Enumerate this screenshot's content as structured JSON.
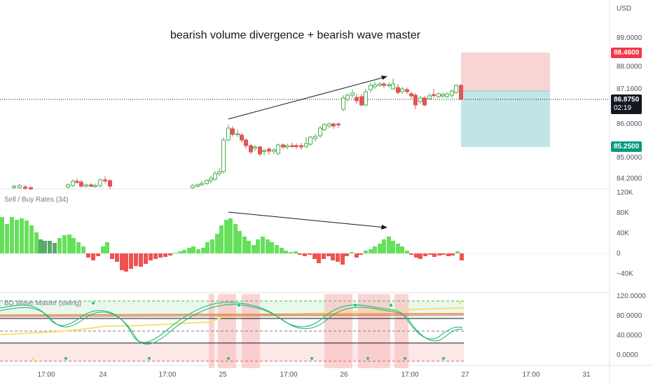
{
  "chart": {
    "annotation": "bearish volume divergence + bearish wave master",
    "currency": "USD",
    "price_axis": {
      "ticks": [
        "89.0000",
        "88.0000",
        "87.1600",
        "86.0000",
        "85.0000",
        "84.2000"
      ]
    },
    "tags": {
      "stop": "88.4600",
      "last": "86.8750",
      "countdown": "02:19",
      "target": "85.2500"
    },
    "colors": {
      "up": "#4caf50",
      "up_fill": "#ffffff",
      "down": "#e05555",
      "stop_zone": "#f7c9c9",
      "target_zone": "#b2dfe0",
      "bull_bar": "#66e05c",
      "bull_bar_dim": "#5aa96a",
      "bear_bar": "#ef5350",
      "pink_band": "#f8c5c5"
    },
    "volume_pane": {
      "title": "Sell / Buy Rates (34)",
      "ticks": [
        "120K",
        "80K",
        "40K",
        "0",
        "−40K"
      ]
    },
    "wave_pane": {
      "title": "BD Wave Master (swing)",
      "ticks": [
        "120.0000",
        "80.0000",
        "40.0000",
        "0.0000"
      ]
    },
    "time_axis": [
      "17:00",
      "24",
      "17:00",
      "25",
      "17:00",
      "26",
      "17:00",
      "27",
      "17:00",
      "31"
    ]
  }
}
